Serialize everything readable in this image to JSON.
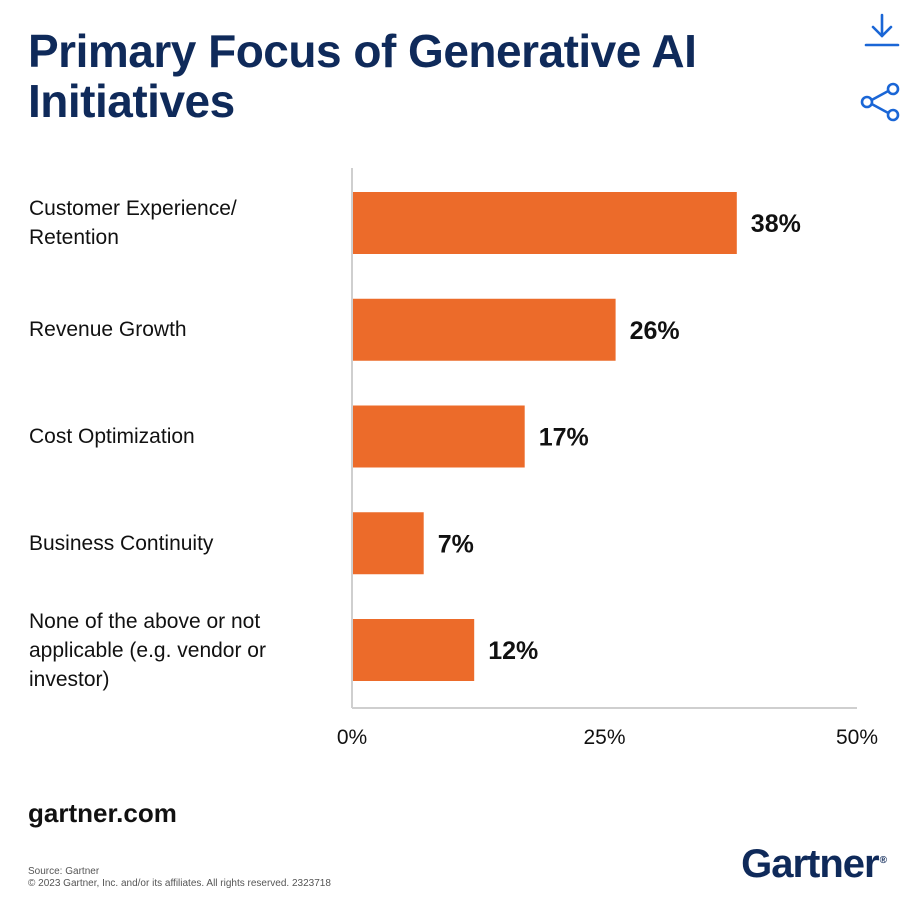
{
  "title": "Primary Focus of Generative AI Initiatives",
  "icons": {
    "download": "download-icon",
    "share": "share-icon"
  },
  "colors": {
    "title": "#0f2a5a",
    "bar": "#ec6b2a",
    "icon": "#1a66d6",
    "brand": "#0f2a5a"
  },
  "chart_data": {
    "type": "bar",
    "orientation": "horizontal",
    "categories": [
      "Customer Experience/\nRetention",
      "Revenue Growth",
      "Cost Optimization",
      "Business Continuity",
      "None of the above or not\napplicable (e.g. vendor or\ninvestor)"
    ],
    "values": [
      38,
      26,
      17,
      7,
      12
    ],
    "value_labels": [
      "38%",
      "26%",
      "17%",
      "7%",
      "12%"
    ],
    "xlim": [
      0,
      50
    ],
    "xticks": [
      0,
      25,
      50
    ],
    "xtick_labels": [
      "0%",
      "25%",
      "50%"
    ],
    "grid": false,
    "legend": false
  },
  "footer": {
    "site": "gartner.com",
    "source_line1": "Source: Gartner",
    "source_line2": "© 2023 Gartner, Inc. and/or its affiliates. All rights reserved. 2323718",
    "brand": "Gartner",
    "brand_mark": "®"
  }
}
